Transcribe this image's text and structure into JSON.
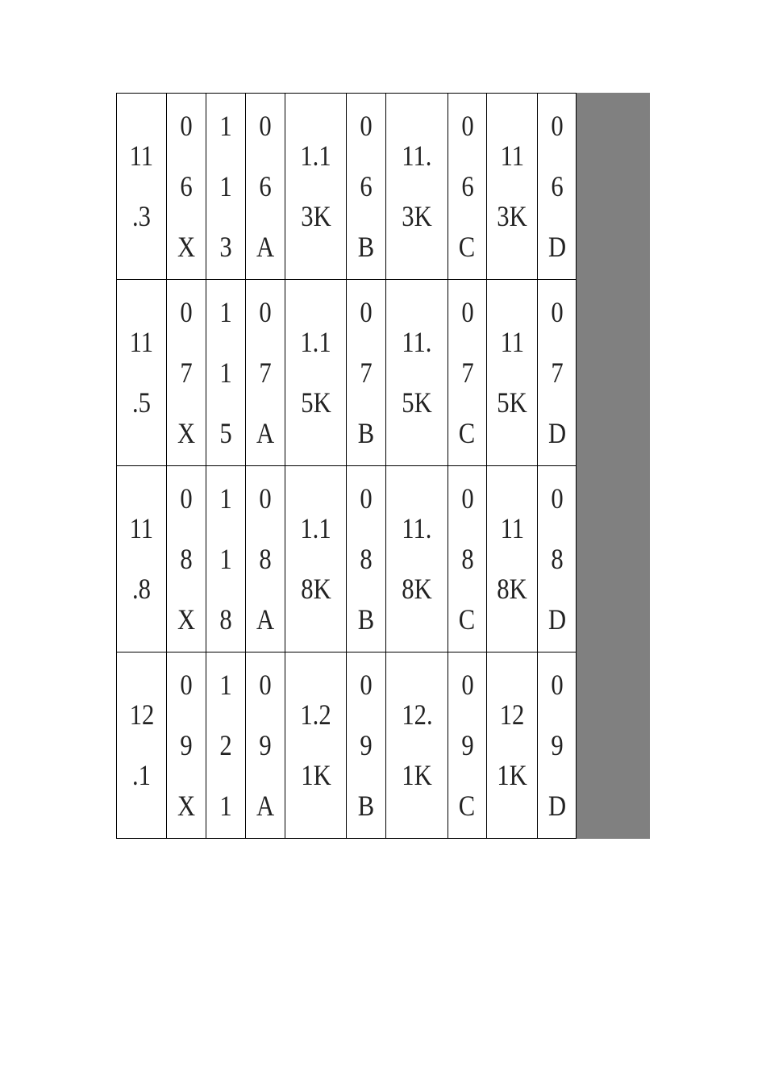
{
  "table": {
    "filler_color": "#808080",
    "rows": [
      [
        [
          "11",
          ".3"
        ],
        [
          "0",
          "6",
          "X"
        ],
        [
          "1",
          "1",
          "3"
        ],
        [
          "0",
          "6",
          "A"
        ],
        [
          "1.1",
          "3K"
        ],
        [
          "0",
          "6",
          "B"
        ],
        [
          "11.",
          "3K"
        ],
        [
          "0",
          "6",
          "C"
        ],
        [
          "11",
          "3K"
        ],
        [
          "0",
          "6",
          "D"
        ]
      ],
      [
        [
          "11",
          ".5"
        ],
        [
          "0",
          "7",
          "X"
        ],
        [
          "1",
          "1",
          "5"
        ],
        [
          "0",
          "7",
          "A"
        ],
        [
          "1.1",
          "5K"
        ],
        [
          "0",
          "7",
          "B"
        ],
        [
          "11.",
          "5K"
        ],
        [
          "0",
          "7",
          "C"
        ],
        [
          "11",
          "5K"
        ],
        [
          "0",
          "7",
          "D"
        ]
      ],
      [
        [
          "11",
          ".8"
        ],
        [
          "0",
          "8",
          "X"
        ],
        [
          "1",
          "1",
          "8"
        ],
        [
          "0",
          "8",
          "A"
        ],
        [
          "1.1",
          "8K"
        ],
        [
          "0",
          "8",
          "B"
        ],
        [
          "11.",
          "8K"
        ],
        [
          "0",
          "8",
          "C"
        ],
        [
          "11",
          "8K"
        ],
        [
          "0",
          "8",
          "D"
        ]
      ],
      [
        [
          "12",
          ".1"
        ],
        [
          "0",
          "9",
          "X"
        ],
        [
          "1",
          "2",
          "1"
        ],
        [
          "0",
          "9",
          "A"
        ],
        [
          "1.2",
          "1K"
        ],
        [
          "0",
          "9",
          "B"
        ],
        [
          "12.",
          "1K"
        ],
        [
          "0",
          "9",
          "C"
        ],
        [
          "12",
          "1K"
        ],
        [
          "0",
          "9",
          "D"
        ]
      ]
    ]
  }
}
